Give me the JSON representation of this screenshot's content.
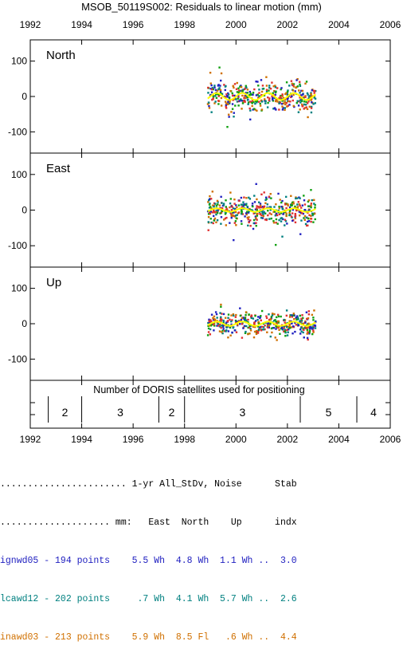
{
  "title": "MSOB_50119S002: Residuals to linear motion (mm)",
  "colors": {
    "ignwd05": "#2020c0",
    "lcawd12": "#008080",
    "inawd03": "#d07000",
    "fit": "#ffff00",
    "green": "#10a010",
    "red": "#e03030"
  },
  "chart_data": [
    {
      "type": "scatter",
      "panel": "North",
      "xlim": [
        1992,
        2006
      ],
      "ylim": [
        -160,
        160
      ],
      "xticks": [
        "1992",
        "1994",
        "1996",
        "1998",
        "2000",
        "2002",
        "2004",
        "2006"
      ],
      "yticks": [
        100,
        0,
        -100
      ],
      "data_span": [
        1998.9,
        2003.1
      ],
      "spread": 28,
      "seasonal_amplitude": 10
    },
    {
      "type": "scatter",
      "panel": "East",
      "xlim": [
        1992,
        2006
      ],
      "ylim": [
        -160,
        160
      ],
      "yticks": [
        100,
        0,
        -100
      ],
      "data_span": [
        1998.9,
        2003.1
      ],
      "spread": 30,
      "seasonal_amplitude": 5
    },
    {
      "type": "scatter",
      "panel": "Up",
      "xlim": [
        1992,
        2006
      ],
      "ylim": [
        -160,
        160
      ],
      "yticks": [
        100,
        0,
        -100
      ],
      "data_span": [
        1998.9,
        2003.1
      ],
      "spread": 22,
      "seasonal_amplitude": 6
    },
    {
      "type": "table",
      "panel": "satellites",
      "title": "Number of DORIS satellites used for positioning",
      "xlim": [
        1992,
        2006
      ],
      "segments": [
        {
          "from": 1992.7,
          "to": 1994.0,
          "count": "2"
        },
        {
          "from": 1994.0,
          "to": 1997.0,
          "count": "3"
        },
        {
          "from": 1997.0,
          "to": 1998.0,
          "count": "2"
        },
        {
          "from": 1998.0,
          "to": 2002.5,
          "count": "3"
        },
        {
          "from": 2002.5,
          "to": 2004.7,
          "count": "5"
        },
        {
          "from": 2004.7,
          "to": 2006.0,
          "count": "4"
        }
      ]
    }
  ],
  "stats": {
    "header1": "....................... 1-yr All_StDv, Noise      Stab",
    "header2": ".................... mm:   East  North    Up      indx",
    "rows": [
      {
        "text": "ignwd05 - 194 points    5.5 Wh  4.8 Wh  1.1 Wh ..  3.0",
        "color": "#2020c0"
      },
      {
        "text": "lcawd12 - 202 points     .7 Wh  4.1 Wh  5.7 Wh ..  2.6",
        "color": "#008080"
      },
      {
        "text": "inawd03 - 213 points    5.9 Wh  8.5 Fl   .6 Wh ..  4.4",
        "color": "#d07000"
      }
    ]
  }
}
